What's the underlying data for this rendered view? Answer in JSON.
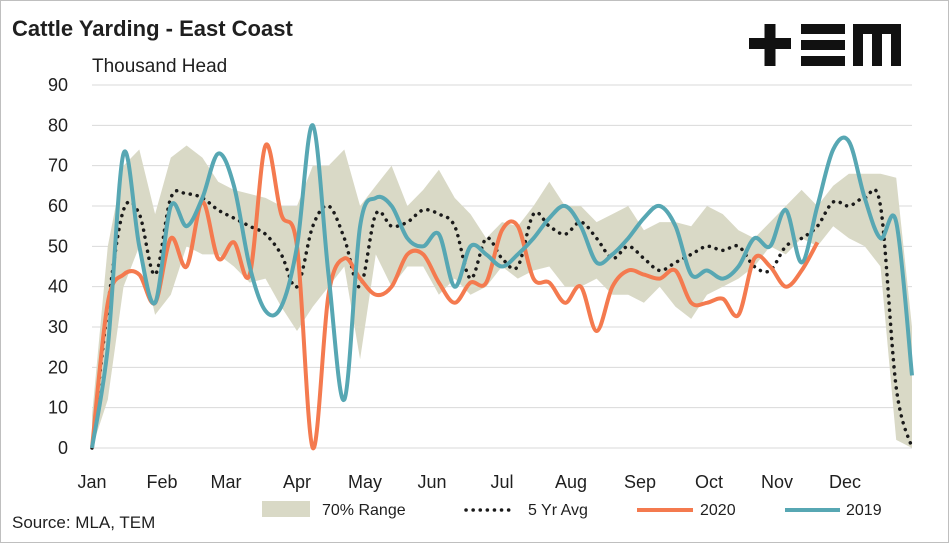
{
  "title": "Cattle Yarding - East Coast",
  "subtitle": "Thousand Head",
  "source": "Source: MLA, TEM",
  "logo_text": "+EM",
  "colors": {
    "range": "#d9d9c6",
    "avg": "#1a1a1a",
    "y2020": "#f47a4f",
    "y2019": "#57a7b3",
    "grid": "#d9d9d9"
  },
  "chart_data": {
    "type": "line",
    "title": "Cattle Yarding - East Coast",
    "ylabel": "Thousand Head",
    "xlabel": "",
    "ylim": [
      0,
      90
    ],
    "yticks": [
      "0",
      "10",
      "20",
      "30",
      "40",
      "50",
      "60",
      "70",
      "80",
      "90"
    ],
    "month_labels": [
      "Jan",
      "Feb",
      "Mar",
      "Apr",
      "May",
      "Jun",
      "Jul",
      "Aug",
      "Sep",
      "Oct",
      "Nov",
      "Dec"
    ],
    "x_unit": "week of year",
    "grid": true,
    "legend_position": "bottom",
    "legend": [
      "70% Range",
      "5 Yr Avg",
      "2020",
      "2019"
    ],
    "series": [
      {
        "name": "70% Range",
        "kind": "band",
        "x": [
          1,
          2,
          3,
          4,
          5,
          6,
          7,
          8,
          9,
          10,
          11,
          12,
          13,
          14,
          15,
          16,
          17,
          18,
          19,
          20,
          21,
          22,
          23,
          24,
          25,
          26,
          27,
          28,
          29,
          30,
          31,
          32,
          33,
          34,
          35,
          36,
          37,
          38,
          39,
          40,
          41,
          42,
          43,
          44,
          45,
          46,
          47,
          48,
          49,
          50,
          51,
          52,
          53
        ],
        "low": [
          0,
          12,
          40,
          50,
          33,
          38,
          50,
          48,
          48,
          45,
          41,
          42,
          35,
          29,
          35,
          40,
          45,
          22,
          48,
          40,
          45,
          45,
          38,
          42,
          38,
          40,
          45,
          42,
          44,
          45,
          40,
          40,
          42,
          38,
          38,
          36,
          40,
          35,
          32,
          38,
          40,
          42,
          45,
          50,
          48,
          52,
          50,
          55,
          52,
          50,
          45,
          2,
          0
        ],
        "high": [
          8,
          50,
          70,
          74,
          58,
          72,
          75,
          72,
          66,
          64,
          63,
          62,
          60,
          60,
          70,
          70,
          74,
          60,
          65,
          70,
          60,
          64,
          69,
          62,
          58,
          52,
          56,
          55,
          60,
          66,
          60,
          60,
          56,
          58,
          60,
          54,
          56,
          56,
          55,
          60,
          58,
          54,
          52,
          56,
          60,
          64,
          60,
          65,
          68,
          68,
          68,
          67,
          30
        ]
      },
      {
        "name": "5 Yr Avg",
        "x": [
          1,
          2,
          3,
          4,
          5,
          6,
          7,
          8,
          9,
          10,
          11,
          12,
          13,
          14,
          15,
          16,
          17,
          18,
          19,
          20,
          21,
          22,
          23,
          24,
          25,
          26,
          27,
          28,
          29,
          30,
          31,
          32,
          33,
          34,
          35,
          36,
          37,
          38,
          39,
          40,
          41,
          42,
          43,
          44,
          45,
          46,
          47,
          48,
          49,
          50,
          51,
          52,
          53
        ],
        "values": [
          0,
          35,
          59,
          58,
          43,
          62,
          63,
          62,
          59,
          57,
          55,
          53,
          48,
          40,
          55,
          60,
          52,
          40,
          58,
          55,
          56,
          59,
          58,
          55,
          42,
          52,
          47,
          45,
          58,
          55,
          53,
          56,
          52,
          47,
          50,
          47,
          44,
          46,
          48,
          50,
          49,
          50,
          45,
          44,
          50,
          52,
          55,
          61,
          60,
          62,
          60,
          15,
          0
        ]
      },
      {
        "name": "2020",
        "x": [
          1,
          2,
          3,
          4,
          5,
          6,
          7,
          8,
          9,
          10,
          11,
          12,
          13,
          14,
          15,
          16,
          17,
          18,
          19,
          20,
          21,
          22,
          23,
          24,
          25,
          26,
          27,
          28,
          29,
          30,
          31,
          32,
          33,
          34,
          35,
          36,
          37,
          38,
          39,
          40,
          41,
          42,
          43,
          44,
          45,
          46,
          47
        ],
        "values": [
          0,
          36,
          43,
          43,
          36,
          52,
          45,
          61,
          47,
          51,
          43,
          75,
          58,
          50,
          0,
          38,
          47,
          42,
          38,
          40,
          48,
          48,
          41,
          36,
          41,
          41,
          54,
          55,
          42,
          41,
          36,
          40,
          29,
          40,
          44,
          43,
          42,
          44,
          36,
          36,
          37,
          33,
          47,
          45,
          40,
          44,
          51
        ]
      },
      {
        "name": "2019",
        "x": [
          1,
          2,
          3,
          4,
          5,
          6,
          7,
          8,
          9,
          10,
          11,
          12,
          13,
          14,
          15,
          16,
          17,
          18,
          19,
          20,
          21,
          22,
          23,
          24,
          25,
          26,
          27,
          28,
          29,
          30,
          31,
          32,
          33,
          34,
          35,
          36,
          37,
          38,
          39,
          40,
          41,
          42,
          43,
          44,
          45,
          46,
          47,
          48,
          49,
          50,
          51,
          52,
          53
        ],
        "values": [
          0,
          25,
          73,
          50,
          36,
          60,
          55,
          62,
          73,
          65,
          45,
          34,
          35,
          50,
          80,
          43,
          12,
          55,
          62,
          60,
          52,
          50,
          53,
          40,
          50,
          48,
          45,
          48,
          52,
          57,
          60,
          55,
          46,
          48,
          52,
          57,
          60,
          55,
          43,
          44,
          42,
          45,
          52,
          50,
          59,
          46,
          60,
          74,
          76,
          62,
          52,
          56,
          18
        ]
      }
    ]
  }
}
